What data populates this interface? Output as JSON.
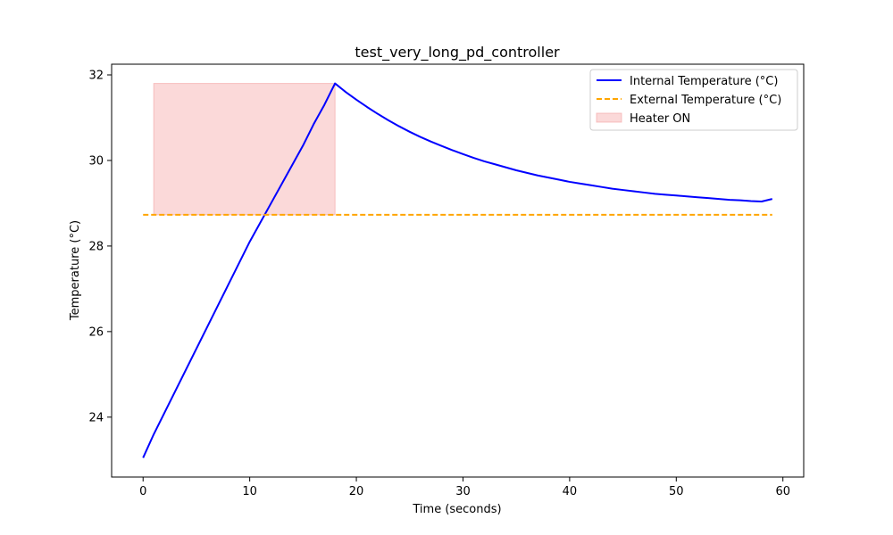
{
  "chart_data": {
    "type": "line",
    "title": "test_very_long_pd_controller",
    "xlabel": "Time (seconds)",
    "ylabel": "Temperature (°C)",
    "xlim": [
      -2.95,
      61.95
    ],
    "ylim": [
      22.6,
      32.25
    ],
    "xticks": [
      0,
      10,
      20,
      30,
      40,
      50,
      60
    ],
    "yticks": [
      24,
      26,
      28,
      30,
      32
    ],
    "grid": false,
    "legend_position": "top-right",
    "series": [
      {
        "name": "Internal Temperature (°C)",
        "style": "solid",
        "color": "#0000ff",
        "x": [
          0,
          1,
          2,
          3,
          4,
          5,
          6,
          7,
          8,
          9,
          10,
          11,
          12,
          13,
          14,
          15,
          16,
          17,
          18,
          19,
          20,
          21,
          22,
          23,
          24,
          25,
          26,
          27,
          28,
          29,
          30,
          31,
          32,
          33,
          34,
          35,
          36,
          37,
          38,
          39,
          40,
          41,
          42,
          43,
          44,
          45,
          46,
          47,
          48,
          49,
          50,
          51,
          52,
          53,
          54,
          55,
          56,
          57,
          58,
          59
        ],
        "y": [
          23.05,
          23.6,
          24.1,
          24.6,
          25.1,
          25.6,
          26.1,
          26.6,
          27.1,
          27.6,
          28.1,
          28.55,
          29.0,
          29.45,
          29.9,
          30.35,
          30.85,
          31.3,
          31.8,
          31.6,
          31.42,
          31.25,
          31.09,
          30.94,
          30.8,
          30.67,
          30.55,
          30.44,
          30.34,
          30.24,
          30.15,
          30.06,
          29.98,
          29.91,
          29.84,
          29.77,
          29.71,
          29.65,
          29.6,
          29.55,
          29.5,
          29.46,
          29.42,
          29.38,
          29.34,
          29.31,
          29.28,
          29.25,
          29.22,
          29.2,
          29.18,
          29.16,
          29.14,
          29.12,
          29.1,
          29.08,
          29.07,
          29.05,
          29.04,
          29.1
        ]
      },
      {
        "name": "External Temperature (°C)",
        "style": "dashed",
        "color": "#ffa500",
        "x": [
          0,
          59
        ],
        "y": [
          28.73,
          28.73
        ]
      }
    ],
    "spans": [
      {
        "name": "Heater ON",
        "color": "#f4a0a0",
        "x_start": 1,
        "x_end": 18,
        "y_start": 28.73,
        "y_end": 31.8
      }
    ]
  }
}
